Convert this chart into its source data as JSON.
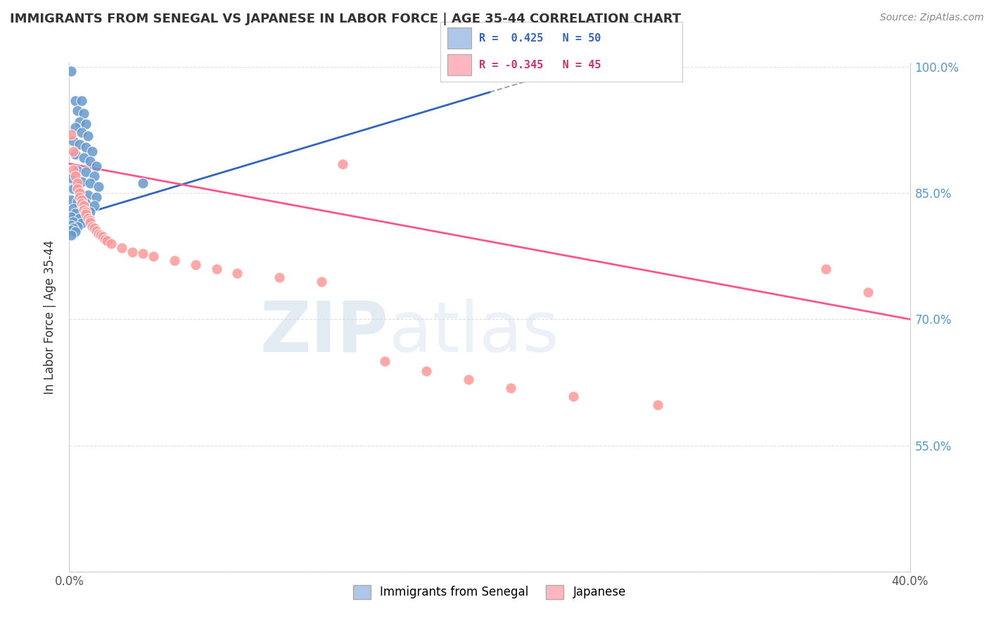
{
  "title": "IMMIGRANTS FROM SENEGAL VS JAPANESE IN LABOR FORCE | AGE 35-44 CORRELATION CHART",
  "source": "Source: ZipAtlas.com",
  "ylabel": "In Labor Force | Age 35-44",
  "x_min": 0.0,
  "x_max": 0.4,
  "y_min": 0.4,
  "y_max": 1.005,
  "x_ticks": [
    0.0,
    0.05,
    0.1,
    0.15,
    0.2,
    0.25,
    0.3,
    0.35,
    0.4
  ],
  "y_ticks": [
    0.4,
    0.55,
    0.7,
    0.85,
    1.0
  ],
  "y_tick_labels": [
    "",
    "55.0%",
    "70.0%",
    "85.0%",
    "100.0%"
  ],
  "senegal_color": "#6699CC",
  "japanese_color": "#FF9999",
  "senegal_R": 0.425,
  "senegal_N": 50,
  "japanese_R": -0.345,
  "japanese_N": 45,
  "senegal_dots": [
    [
      0.001,
      0.995
    ],
    [
      0.003,
      0.96
    ],
    [
      0.006,
      0.96
    ],
    [
      0.004,
      0.948
    ],
    [
      0.007,
      0.945
    ],
    [
      0.005,
      0.935
    ],
    [
      0.008,
      0.932
    ],
    [
      0.003,
      0.928
    ],
    [
      0.006,
      0.922
    ],
    [
      0.009,
      0.918
    ],
    [
      0.002,
      0.912
    ],
    [
      0.005,
      0.908
    ],
    [
      0.008,
      0.905
    ],
    [
      0.011,
      0.9
    ],
    [
      0.003,
      0.896
    ],
    [
      0.007,
      0.892
    ],
    [
      0.01,
      0.888
    ],
    [
      0.013,
      0.882
    ],
    [
      0.004,
      0.877
    ],
    [
      0.008,
      0.875
    ],
    [
      0.012,
      0.87
    ],
    [
      0.001,
      0.868
    ],
    [
      0.006,
      0.864
    ],
    [
      0.01,
      0.862
    ],
    [
      0.014,
      0.858
    ],
    [
      0.002,
      0.855
    ],
    [
      0.005,
      0.852
    ],
    [
      0.009,
      0.848
    ],
    [
      0.013,
      0.845
    ],
    [
      0.001,
      0.842
    ],
    [
      0.004,
      0.84
    ],
    [
      0.008,
      0.838
    ],
    [
      0.012,
      0.835
    ],
    [
      0.002,
      0.832
    ],
    [
      0.006,
      0.83
    ],
    [
      0.01,
      0.828
    ],
    [
      0.003,
      0.826
    ],
    [
      0.007,
      0.824
    ],
    [
      0.001,
      0.822
    ],
    [
      0.005,
      0.82
    ],
    [
      0.009,
      0.818
    ],
    [
      0.002,
      0.816
    ],
    [
      0.006,
      0.814
    ],
    [
      0.001,
      0.812
    ],
    [
      0.004,
      0.81
    ],
    [
      0.002,
      0.808
    ],
    [
      0.001,
      0.806
    ],
    [
      0.003,
      0.804
    ],
    [
      0.001,
      0.8
    ],
    [
      0.035,
      0.862
    ]
  ],
  "japanese_dots": [
    [
      0.001,
      0.92
    ],
    [
      0.002,
      0.9
    ],
    [
      0.002,
      0.878
    ],
    [
      0.003,
      0.87
    ],
    [
      0.004,
      0.862
    ],
    [
      0.004,
      0.855
    ],
    [
      0.005,
      0.85
    ],
    [
      0.005,
      0.845
    ],
    [
      0.006,
      0.842
    ],
    [
      0.006,
      0.838
    ],
    [
      0.007,
      0.835
    ],
    [
      0.007,
      0.83
    ],
    [
      0.008,
      0.828
    ],
    [
      0.008,
      0.825
    ],
    [
      0.009,
      0.82
    ],
    [
      0.01,
      0.818
    ],
    [
      0.01,
      0.815
    ],
    [
      0.011,
      0.81
    ],
    [
      0.012,
      0.808
    ],
    [
      0.013,
      0.805
    ],
    [
      0.014,
      0.802
    ],
    [
      0.015,
      0.8
    ],
    [
      0.016,
      0.798
    ],
    [
      0.017,
      0.795
    ],
    [
      0.018,
      0.793
    ],
    [
      0.02,
      0.79
    ],
    [
      0.025,
      0.785
    ],
    [
      0.03,
      0.78
    ],
    [
      0.035,
      0.778
    ],
    [
      0.04,
      0.775
    ],
    [
      0.05,
      0.77
    ],
    [
      0.06,
      0.765
    ],
    [
      0.07,
      0.76
    ],
    [
      0.08,
      0.755
    ],
    [
      0.1,
      0.75
    ],
    [
      0.12,
      0.745
    ],
    [
      0.13,
      0.885
    ],
    [
      0.15,
      0.65
    ],
    [
      0.17,
      0.638
    ],
    [
      0.19,
      0.628
    ],
    [
      0.21,
      0.618
    ],
    [
      0.24,
      0.608
    ],
    [
      0.28,
      0.598
    ],
    [
      0.36,
      0.76
    ],
    [
      0.38,
      0.732
    ]
  ],
  "watermark_zip": "ZIP",
  "watermark_atlas": "atlas",
  "background_color": "#FFFFFF",
  "grid_color": "#DDDDDD",
  "legend_box_color_senegal": "#AEC6E8",
  "legend_box_color_japanese": "#FFB6C1",
  "senegal_trend_color": "#3366BB",
  "japanese_trend_color": "#FF5588",
  "senegal_trend_start_x": 0.0,
  "senegal_trend_end_x": 0.2,
  "japanese_trend_start_x": 0.0,
  "japanese_trend_end_x": 0.4
}
